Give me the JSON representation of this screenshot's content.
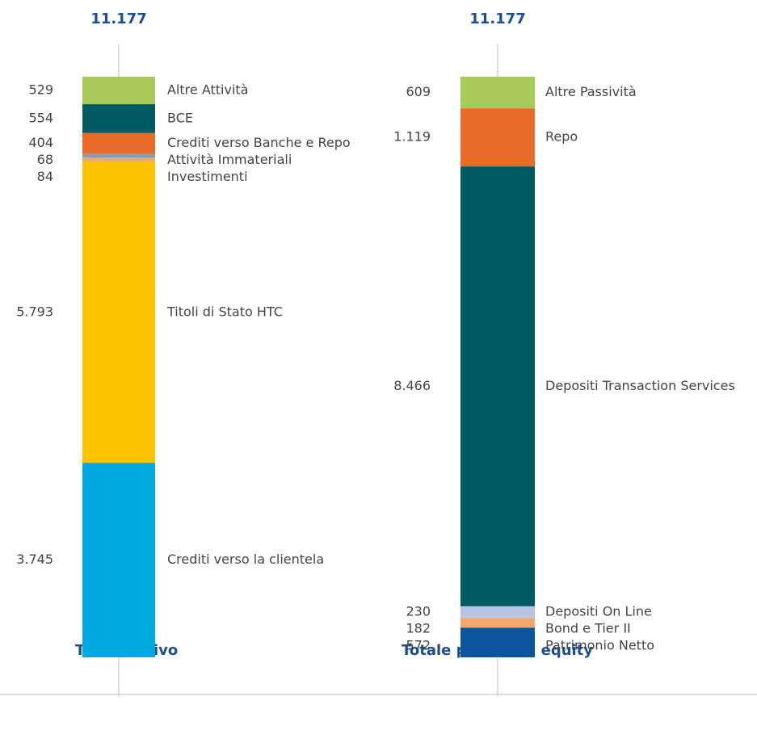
{
  "chart_data": [
    {
      "type": "bar",
      "stacked": true,
      "categories": [
        "Totale attivo"
      ],
      "ylim": [
        0,
        11177
      ],
      "total": 11177,
      "total_label": "11.177",
      "series": [
        {
          "name": "Crediti verso la clientela",
          "color": "#00a9e0",
          "values": [
            3745
          ],
          "value_labels": [
            "3.745"
          ]
        },
        {
          "name": "Titoli di Stato HTC",
          "color": "#fbc200",
          "values": [
            5793
          ],
          "value_labels": [
            "5.793"
          ]
        },
        {
          "name": "Investimenti",
          "color": "#f5a66a",
          "values": [
            84
          ]
        },
        {
          "name": "Attività Immateriali",
          "color": "#7f9fbf",
          "values": [
            68
          ]
        },
        {
          "name": "Crediti verso Banche e Repo",
          "color": "#ea6a2a",
          "values": [
            404
          ]
        },
        {
          "name": "BCE",
          "color": "#005a64",
          "values": [
            554
          ]
        },
        {
          "name": "Altre Attività",
          "color": "#a9c95a",
          "values": [
            529
          ]
        }
      ]
    },
    {
      "type": "bar",
      "stacked": true,
      "categories": [
        "Totale passivo & equity"
      ],
      "ylim": [
        0,
        11177
      ],
      "total": 11177,
      "total_label": "11.177",
      "series": [
        {
          "name": "Patrimonio Netto",
          "color": "#0a559c",
          "values": [
            572
          ]
        },
        {
          "name": "Bond e Tier II",
          "color": "#f5a66a",
          "values": [
            182
          ]
        },
        {
          "name": "Depositi On Line",
          "color": "#b8c4e4",
          "values": [
            230
          ]
        },
        {
          "name": "Depositi Transaction Services",
          "color": "#005a64",
          "values": [
            8466
          ],
          "value_labels": [
            "8.466"
          ]
        },
        {
          "name": "Repo",
          "color": "#ea6a2a",
          "values": [
            1119
          ],
          "value_labels": [
            "1.119"
          ]
        },
        {
          "name": "Altre Passività",
          "color": "#a9c95a",
          "values": [
            609
          ]
        }
      ]
    }
  ]
}
